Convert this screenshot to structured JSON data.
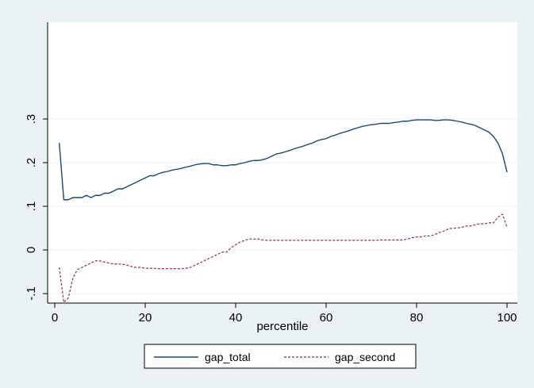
{
  "chart_data": {
    "type": "line",
    "xlabel": "percentile",
    "ylabel": "",
    "xlim": [
      0,
      100
    ],
    "ylim": [
      -0.18,
      0.52
    ],
    "x_ticks": [
      0,
      20,
      40,
      60,
      80,
      100
    ],
    "x_tick_labels": [
      "0",
      "20",
      "40",
      "60",
      "80",
      "100"
    ],
    "y_ticks": [
      -0.1,
      0,
      0.1,
      0.2,
      0.3
    ],
    "y_tick_labels": [
      "-.1",
      "0",
      ".1",
      ".2",
      ".3"
    ],
    "grid": "horizontal",
    "legend_position": "bottom",
    "colors": {
      "gap_total": "#1a476f",
      "gap_second": "#90353b",
      "plot_bg": "#ffffff",
      "outer_bg": "#eaf2f3",
      "grid": "#eaf2f3"
    },
    "x": [
      1,
      2,
      3,
      4,
      5,
      6,
      7,
      8,
      9,
      10,
      11,
      12,
      13,
      14,
      15,
      16,
      17,
      18,
      19,
      20,
      21,
      22,
      23,
      24,
      25,
      26,
      27,
      28,
      29,
      30,
      31,
      32,
      33,
      34,
      35,
      36,
      37,
      38,
      39,
      40,
      41,
      42,
      43,
      44,
      45,
      46,
      47,
      48,
      49,
      50,
      51,
      52,
      53,
      54,
      55,
      56,
      57,
      58,
      59,
      60,
      61,
      62,
      63,
      64,
      65,
      66,
      67,
      68,
      69,
      70,
      71,
      72,
      73,
      74,
      75,
      76,
      77,
      78,
      79,
      80,
      81,
      82,
      83,
      84,
      85,
      86,
      87,
      88,
      89,
      90,
      91,
      92,
      93,
      94,
      95,
      96,
      97,
      98,
      99,
      100
    ],
    "series": [
      {
        "name": "gap_total",
        "style": "solid",
        "values": [
          0.245,
          0.115,
          0.115,
          0.12,
          0.12,
          0.12,
          0.125,
          0.12,
          0.125,
          0.125,
          0.13,
          0.13,
          0.135,
          0.14,
          0.14,
          0.145,
          0.15,
          0.155,
          0.16,
          0.165,
          0.17,
          0.17,
          0.175,
          0.178,
          0.18,
          0.183,
          0.185,
          0.187,
          0.19,
          0.192,
          0.195,
          0.197,
          0.198,
          0.198,
          0.195,
          0.195,
          0.193,
          0.193,
          0.195,
          0.195,
          0.198,
          0.2,
          0.203,
          0.205,
          0.205,
          0.207,
          0.21,
          0.215,
          0.22,
          0.222,
          0.225,
          0.228,
          0.232,
          0.235,
          0.238,
          0.242,
          0.245,
          0.25,
          0.253,
          0.255,
          0.26,
          0.263,
          0.267,
          0.27,
          0.273,
          0.277,
          0.28,
          0.283,
          0.285,
          0.287,
          0.288,
          0.29,
          0.29,
          0.29,
          0.292,
          0.293,
          0.295,
          0.295,
          0.297,
          0.298,
          0.298,
          0.298,
          0.298,
          0.297,
          0.297,
          0.298,
          0.298,
          0.297,
          0.295,
          0.293,
          0.29,
          0.288,
          0.285,
          0.28,
          0.275,
          0.27,
          0.26,
          0.245,
          0.22,
          0.178
        ]
      },
      {
        "name": "gap_second",
        "style": "dashed",
        "values": [
          -0.04,
          -0.12,
          -0.11,
          -0.065,
          -0.045,
          -0.04,
          -0.035,
          -0.03,
          -0.025,
          -0.025,
          -0.028,
          -0.03,
          -0.032,
          -0.032,
          -0.033,
          -0.035,
          -0.038,
          -0.04,
          -0.04,
          -0.042,
          -0.042,
          -0.042,
          -0.043,
          -0.043,
          -0.043,
          -0.043,
          -0.043,
          -0.043,
          -0.042,
          -0.04,
          -0.035,
          -0.03,
          -0.025,
          -0.02,
          -0.015,
          -0.01,
          -0.005,
          -0.005,
          0.005,
          0.012,
          0.018,
          0.022,
          0.025,
          0.025,
          0.025,
          0.023,
          0.022,
          0.022,
          0.022,
          0.022,
          0.022,
          0.022,
          0.022,
          0.022,
          0.022,
          0.022,
          0.022,
          0.022,
          0.022,
          0.022,
          0.022,
          0.022,
          0.022,
          0.022,
          0.022,
          0.022,
          0.022,
          0.022,
          0.022,
          0.022,
          0.022,
          0.023,
          0.023,
          0.023,
          0.023,
          0.023,
          0.023,
          0.025,
          0.028,
          0.03,
          0.03,
          0.032,
          0.032,
          0.035,
          0.04,
          0.043,
          0.048,
          0.05,
          0.05,
          0.052,
          0.055,
          0.055,
          0.058,
          0.06,
          0.06,
          0.062,
          0.062,
          0.075,
          0.082,
          0.052
        ]
      }
    ]
  }
}
